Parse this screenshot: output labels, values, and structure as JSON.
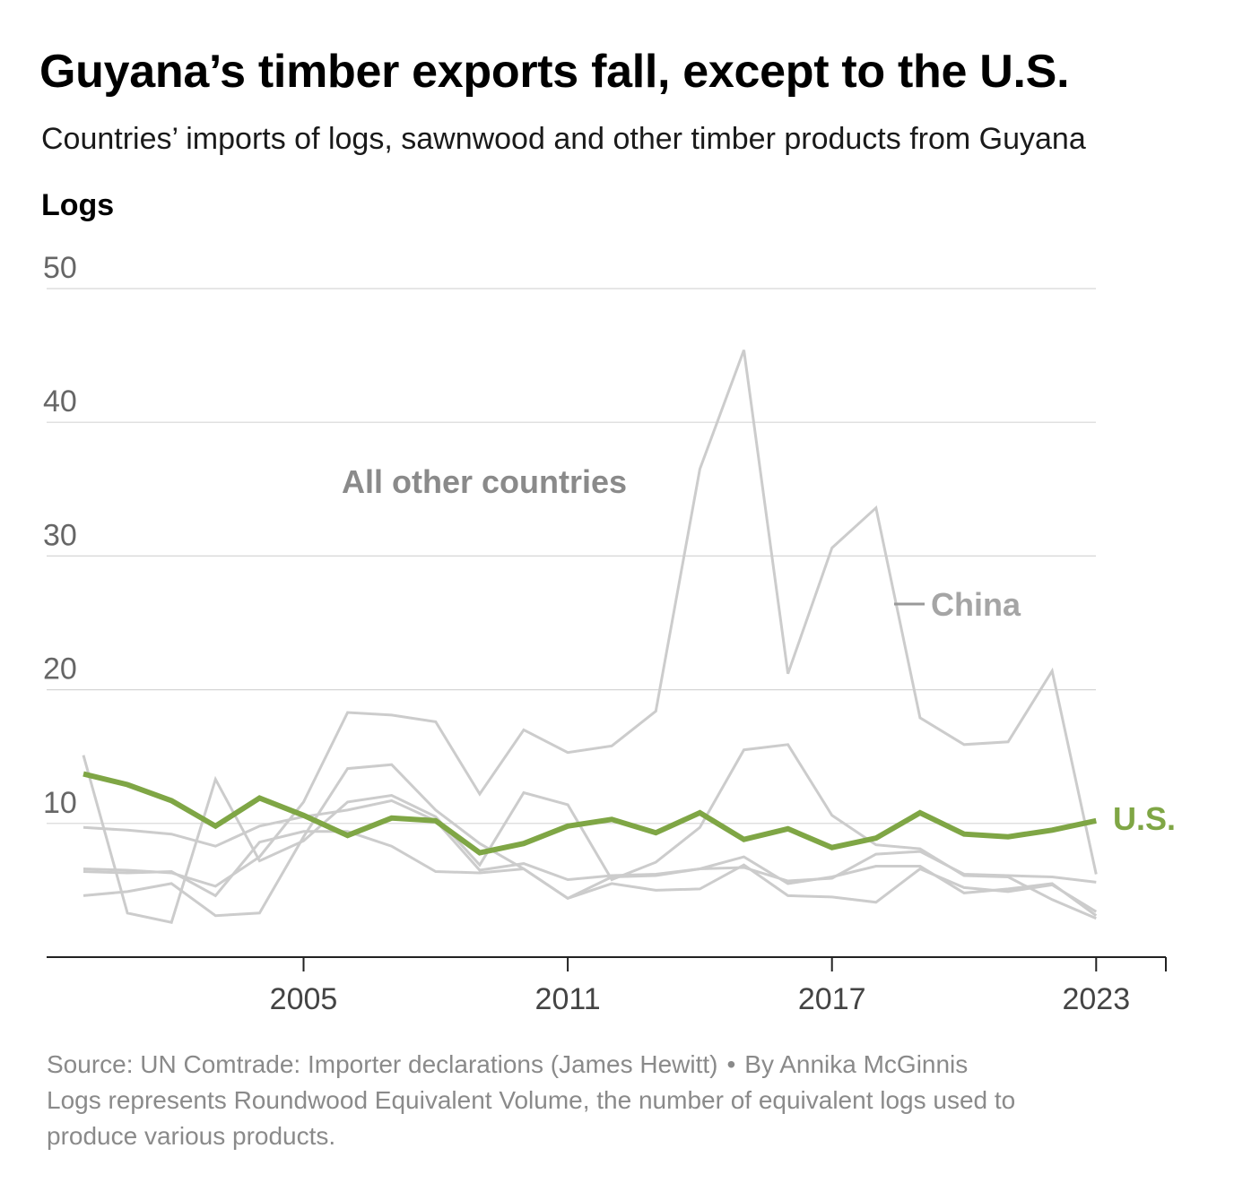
{
  "header": {
    "title": "Guyana’s timber exports fall, except to the U.S.",
    "subtitle": "Countries’ imports of logs, sawnwood and other timber products from Guyana",
    "y_axis_title": "Logs"
  },
  "chart_data": {
    "type": "line",
    "title": "Guyana’s timber exports fall, except to the U.S.",
    "subtitle": "Countries’ imports of logs, sawnwood and other timber products from Guyana",
    "ylabel": "Logs",
    "xlabel": "",
    "ylim": [
      0,
      50
    ],
    "xlim": [
      2000,
      2024
    ],
    "y_ticks": [
      10,
      20,
      30,
      40,
      50
    ],
    "x_ticks": [
      2005,
      2011,
      2017,
      2023
    ],
    "grid": "horizontal",
    "x": [
      2000,
      2001,
      2002,
      2003,
      2004,
      2005,
      2006,
      2007,
      2008,
      2009,
      2010,
      2011,
      2012,
      2013,
      2014,
      2015,
      2016,
      2017,
      2018,
      2019,
      2020,
      2021,
      2022,
      2023
    ],
    "annotations": [
      "All other countries",
      "China",
      "U.S."
    ],
    "series": [
      {
        "name": "U.S.",
        "highlight": true,
        "color": "#7fa645",
        "values": [
          13.7,
          12.9,
          11.7,
          9.8,
          11.9,
          10.6,
          9.1,
          10.4,
          10.2,
          7.8,
          8.5,
          9.8,
          10.3,
          9.3,
          10.8,
          8.8,
          9.6,
          8.2,
          8.9,
          10.8,
          9.2,
          9.0,
          9.5,
          10.2
        ]
      },
      {
        "name": "China",
        "highlight": false,
        "color": "#cccccc",
        "values": [
          6.6,
          6.5,
          6.3,
          5.3,
          7.5,
          11.6,
          18.3,
          18.1,
          17.6,
          12.2,
          17.0,
          15.3,
          15.8,
          18.4,
          36.5,
          45.4,
          21.2,
          30.6,
          33.6,
          17.9,
          15.9,
          16.1,
          21.4,
          6.2
        ]
      },
      {
        "name": "",
        "highlight": false,
        "color": "#cccccc",
        "values": [
          15.1,
          3.3,
          2.6,
          13.3,
          7.2,
          8.7,
          11.6,
          12.1,
          10.5,
          6.9,
          12.3,
          11.4,
          5.8,
          7.1,
          9.7,
          15.5,
          15.9,
          10.6,
          8.4,
          8.1,
          6.1,
          6.0,
          4.3,
          2.9
        ]
      },
      {
        "name": "",
        "highlight": false,
        "color": "#cccccc",
        "values": [
          9.7,
          9.5,
          9.2,
          8.3,
          9.8,
          10.5,
          11.0,
          11.7,
          10.2,
          6.5,
          7.0,
          5.8,
          6.1,
          6.2,
          6.6,
          6.7,
          5.7,
          5.9,
          7.7,
          7.9,
          6.2,
          6.1,
          6.0,
          5.6
        ]
      },
      {
        "name": "",
        "highlight": false,
        "color": "#cccccc",
        "values": [
          4.6,
          4.9,
          5.5,
          3.1,
          3.3,
          9.0,
          14.1,
          14.4,
          11.0,
          8.5,
          6.6,
          4.4,
          6.0,
          6.1,
          6.6,
          7.5,
          5.5,
          6.0,
          6.8,
          6.8,
          4.8,
          5.1,
          5.5,
          3.1
        ]
      },
      {
        "name": "",
        "highlight": false,
        "color": "#cccccc",
        "values": [
          6.4,
          6.3,
          6.4,
          4.6,
          8.6,
          9.4,
          9.4,
          8.3,
          6.4,
          6.3,
          6.6,
          4.4,
          5.5,
          5.0,
          5.1,
          6.9,
          4.6,
          4.5,
          4.1,
          6.6,
          5.2,
          4.9,
          5.4,
          3.4
        ]
      }
    ]
  },
  "footer": {
    "source": "Source: UN Comtrade: Importer declarations (James Hewitt)",
    "separator": "•",
    "byline": "By Annika McGinnis",
    "note": "Logs represents Roundwood Equivalent Volume, the number of equivalent logs used to produce various products."
  }
}
